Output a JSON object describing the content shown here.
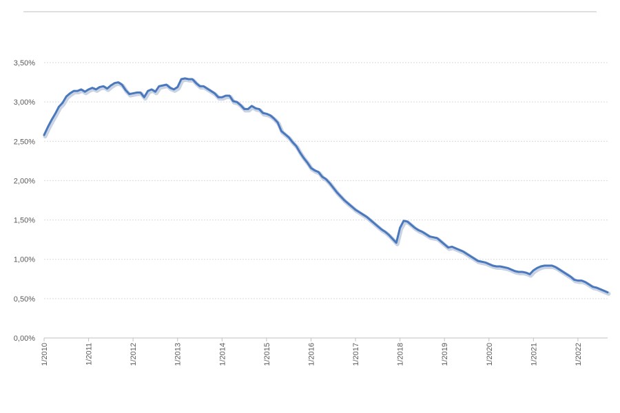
{
  "chart_data": {
    "type": "line",
    "title": "",
    "xlabel": "",
    "ylabel": "",
    "ylim": [
      0,
      3.5
    ],
    "y_ticks": [
      "0,00%",
      "0,50%",
      "1,00%",
      "1,50%",
      "2,00%",
      "2,50%",
      "3,00%",
      "3,50%"
    ],
    "x_ticks": [
      "1/2010",
      "1/2011",
      "1/2012",
      "1/2013",
      "1/2014",
      "1/2015",
      "1/2016",
      "1/2017",
      "1/2018",
      "1/2019",
      "1/2020",
      "1/2021",
      "1/2022"
    ],
    "x_range": [
      "2010-01",
      "2022-09"
    ],
    "grid": true,
    "legend": "none",
    "colors": {
      "line": "#4a78bd",
      "line_shadow": "#c9d3e3",
      "grid": "#d9d9d9",
      "axis": "#bfbfbf"
    },
    "series": [
      {
        "x": [
          "2010-01",
          "2010-02",
          "2010-03",
          "2010-04",
          "2010-05",
          "2010-06",
          "2010-07",
          "2010-08",
          "2010-09",
          "2010-10",
          "2010-11",
          "2010-12",
          "2011-01",
          "2011-02",
          "2011-03",
          "2011-04",
          "2011-05",
          "2011-06",
          "2011-07",
          "2011-08",
          "2011-09",
          "2011-10",
          "2011-11",
          "2011-12",
          "2012-01",
          "2012-02",
          "2012-03",
          "2012-04",
          "2012-05",
          "2012-06",
          "2012-07",
          "2012-08",
          "2012-09",
          "2012-10",
          "2012-11",
          "2012-12",
          "2013-01",
          "2013-02",
          "2013-03",
          "2013-04",
          "2013-05",
          "2013-06",
          "2013-07",
          "2013-08",
          "2013-09",
          "2013-10",
          "2013-11",
          "2013-12",
          "2014-01",
          "2014-02",
          "2014-03",
          "2014-04",
          "2014-05",
          "2014-06",
          "2014-07",
          "2014-08",
          "2014-09",
          "2014-10",
          "2014-11",
          "2014-12",
          "2015-01",
          "2015-02",
          "2015-03",
          "2015-04",
          "2015-05",
          "2015-06",
          "2015-07",
          "2015-08",
          "2015-09",
          "2015-10",
          "2015-11",
          "2015-12",
          "2016-01",
          "2016-02",
          "2016-03",
          "2016-04",
          "2016-05",
          "2016-06",
          "2016-07",
          "2016-08",
          "2016-09",
          "2016-10",
          "2016-11",
          "2016-12",
          "2017-01",
          "2017-02",
          "2017-03",
          "2017-04",
          "2017-05",
          "2017-06",
          "2017-07",
          "2017-08",
          "2017-09",
          "2017-10",
          "2017-11",
          "2017-12",
          "2018-01",
          "2018-02",
          "2018-03",
          "2018-04",
          "2018-05",
          "2018-06",
          "2018-07",
          "2018-08",
          "2018-09",
          "2018-10",
          "2018-11",
          "2018-12",
          "2019-01",
          "2019-02",
          "2019-03",
          "2019-04",
          "2019-05",
          "2019-06",
          "2019-07",
          "2019-08",
          "2019-09",
          "2019-10",
          "2019-11",
          "2019-12",
          "2020-01",
          "2020-02",
          "2020-03",
          "2020-04",
          "2020-05",
          "2020-06",
          "2020-07",
          "2020-08",
          "2020-09",
          "2020-10",
          "2020-11",
          "2020-12",
          "2021-01",
          "2021-02",
          "2021-03",
          "2021-04",
          "2021-05",
          "2021-06",
          "2021-07",
          "2021-08",
          "2021-09",
          "2021-10",
          "2021-11",
          "2021-12",
          "2022-01",
          "2022-02",
          "2022-03",
          "2022-04",
          "2022-05",
          "2022-06",
          "2022-07",
          "2022-08",
          "2022-09"
        ],
        "y": [
          2.58,
          2.68,
          2.77,
          2.85,
          2.94,
          2.99,
          3.07,
          3.11,
          3.14,
          3.14,
          3.16,
          3.13,
          3.16,
          3.18,
          3.16,
          3.19,
          3.2,
          3.17,
          3.21,
          3.24,
          3.25,
          3.22,
          3.15,
          3.1,
          3.11,
          3.12,
          3.12,
          3.06,
          3.14,
          3.16,
          3.13,
          3.2,
          3.21,
          3.22,
          3.18,
          3.16,
          3.19,
          3.29,
          3.3,
          3.29,
          3.29,
          3.24,
          3.2,
          3.2,
          3.17,
          3.14,
          3.11,
          3.06,
          3.06,
          3.08,
          3.08,
          3.01,
          3.0,
          2.96,
          2.91,
          2.91,
          2.95,
          2.92,
          2.91,
          2.86,
          2.85,
          2.83,
          2.79,
          2.74,
          2.63,
          2.59,
          2.55,
          2.49,
          2.44,
          2.36,
          2.29,
          2.23,
          2.16,
          2.13,
          2.11,
          2.05,
          2.02,
          1.97,
          1.91,
          1.85,
          1.8,
          1.75,
          1.71,
          1.67,
          1.63,
          1.6,
          1.57,
          1.54,
          1.5,
          1.46,
          1.42,
          1.38,
          1.35,
          1.31,
          1.26,
          1.21,
          1.4,
          1.49,
          1.48,
          1.44,
          1.4,
          1.37,
          1.35,
          1.32,
          1.29,
          1.28,
          1.27,
          1.23,
          1.19,
          1.15,
          1.16,
          1.14,
          1.12,
          1.1,
          1.07,
          1.04,
          1.01,
          0.98,
          0.97,
          0.96,
          0.94,
          0.92,
          0.91,
          0.91,
          0.9,
          0.89,
          0.87,
          0.85,
          0.84,
          0.84,
          0.83,
          0.81,
          0.86,
          0.89,
          0.91,
          0.92,
          0.92,
          0.92,
          0.9,
          0.87,
          0.84,
          0.81,
          0.78,
          0.74,
          0.73,
          0.73,
          0.71,
          0.68,
          0.65,
          0.64,
          0.62,
          0.6,
          0.58
        ]
      }
    ]
  }
}
